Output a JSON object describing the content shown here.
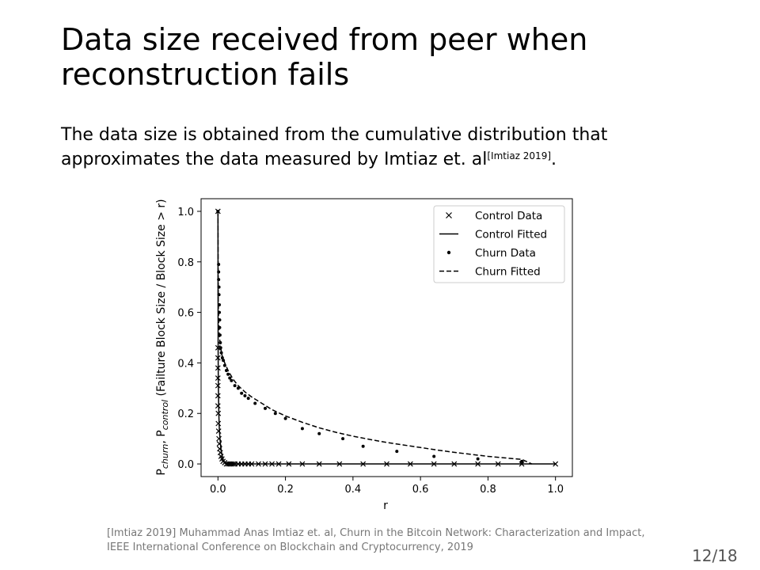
{
  "slide": {
    "title": "Data size received from peer when reconstruction fails",
    "body_text": "The data size is obtained from the cumulative distribution that approximates the data measured by Imtiaz et. al",
    "body_citation": "[Imtiaz 2019]",
    "body_end": ".",
    "footnote": "[Imtiaz 2019] Muhammad Anas Imtiaz et. al, Churn in the Bitcoin Network: Characterization and Impact, IEEE International Conference on Blockchain and Cryptocurrency, 2019",
    "page_number": "12/18"
  },
  "chart_data": {
    "type": "scatter",
    "xlabel": "r",
    "ylabel": "P_churn, P_control (Failture Block Size / Block Size > r)",
    "ylabel_parts": {
      "p1": "P",
      "sub1": "churn",
      "sep": ", ",
      "p2": "P",
      "sub2": "control",
      "rest": " (Failture Block Size / Block Size > r)"
    },
    "xlim": [
      -0.05,
      1.05
    ],
    "ylim": [
      -0.05,
      1.05
    ],
    "x_ticks": [
      "0.0",
      "0.2",
      "0.4",
      "0.6",
      "0.8",
      "1.0"
    ],
    "y_ticks": [
      "0.0",
      "0.2",
      "0.4",
      "0.6",
      "0.8",
      "1.0"
    ],
    "grid": false,
    "legend_position": "top-right",
    "series": [
      {
        "name": "Control Data",
        "style": "x-marker",
        "points": [
          [
            0.0,
            1.0
          ],
          [
            0.0,
            0.46
          ],
          [
            0.0,
            0.42
          ],
          [
            0.0,
            0.38
          ],
          [
            0.0,
            0.34
          ],
          [
            0.0,
            0.31
          ],
          [
            0.0,
            0.27
          ],
          [
            0.0,
            0.23
          ],
          [
            0.001,
            0.2
          ],
          [
            0.001,
            0.16
          ],
          [
            0.002,
            0.13
          ],
          [
            0.003,
            0.1
          ],
          [
            0.004,
            0.08
          ],
          [
            0.005,
            0.06
          ],
          [
            0.007,
            0.045
          ],
          [
            0.009,
            0.03
          ],
          [
            0.012,
            0.02
          ],
          [
            0.015,
            0.01
          ],
          [
            0.02,
            0.005
          ],
          [
            0.025,
            0.0
          ],
          [
            0.03,
            0.0
          ],
          [
            0.035,
            0.0
          ],
          [
            0.04,
            0.0
          ],
          [
            0.045,
            0.0
          ],
          [
            0.05,
            0.0
          ],
          [
            0.06,
            0.0
          ],
          [
            0.07,
            0.0
          ],
          [
            0.08,
            0.0
          ],
          [
            0.09,
            0.0
          ],
          [
            0.1,
            0.0
          ],
          [
            0.12,
            0.0
          ],
          [
            0.14,
            0.0
          ],
          [
            0.16,
            0.0
          ],
          [
            0.18,
            0.0
          ],
          [
            0.21,
            0.0
          ],
          [
            0.25,
            0.0
          ],
          [
            0.3,
            0.0
          ],
          [
            0.36,
            0.0
          ],
          [
            0.43,
            0.0
          ],
          [
            0.5,
            0.0
          ],
          [
            0.57,
            0.0
          ],
          [
            0.64,
            0.0
          ],
          [
            0.7,
            0.0
          ],
          [
            0.77,
            0.0
          ],
          [
            0.83,
            0.0
          ],
          [
            0.9,
            0.0
          ],
          [
            1.0,
            0.0
          ]
        ]
      },
      {
        "name": "Control Fitted",
        "style": "solid-line",
        "points": [
          [
            0.0,
            1.0
          ],
          [
            0.0005,
            0.46
          ],
          [
            0.001,
            0.33
          ],
          [
            0.002,
            0.24
          ],
          [
            0.003,
            0.18
          ],
          [
            0.004,
            0.14
          ],
          [
            0.006,
            0.1
          ],
          [
            0.008,
            0.07
          ],
          [
            0.01,
            0.05
          ],
          [
            0.013,
            0.03
          ],
          [
            0.016,
            0.015
          ],
          [
            0.02,
            0.006
          ],
          [
            0.03,
            0.001
          ],
          [
            0.05,
            0.0
          ],
          [
            0.1,
            0.0
          ],
          [
            0.3,
            0.0
          ],
          [
            0.6,
            0.0
          ],
          [
            1.0,
            0.0
          ]
        ]
      },
      {
        "name": "Churn Data",
        "style": "dot-marker",
        "points": [
          [
            0.0,
            1.0
          ],
          [
            0.002,
            0.79
          ],
          [
            0.002,
            0.76
          ],
          [
            0.002,
            0.73
          ],
          [
            0.003,
            0.7
          ],
          [
            0.003,
            0.67
          ],
          [
            0.004,
            0.63
          ],
          [
            0.004,
            0.6
          ],
          [
            0.005,
            0.57
          ],
          [
            0.005,
            0.54
          ],
          [
            0.006,
            0.51
          ],
          [
            0.007,
            0.48
          ],
          [
            0.008,
            0.46
          ],
          [
            0.01,
            0.44
          ],
          [
            0.013,
            0.42
          ],
          [
            0.016,
            0.41
          ],
          [
            0.02,
            0.39
          ],
          [
            0.025,
            0.37
          ],
          [
            0.03,
            0.355
          ],
          [
            0.035,
            0.34
          ],
          [
            0.04,
            0.33
          ],
          [
            0.05,
            0.31
          ],
          [
            0.06,
            0.3
          ],
          [
            0.07,
            0.28
          ],
          [
            0.08,
            0.27
          ],
          [
            0.09,
            0.26
          ],
          [
            0.11,
            0.24
          ],
          [
            0.14,
            0.22
          ],
          [
            0.17,
            0.2
          ],
          [
            0.2,
            0.18
          ],
          [
            0.25,
            0.14
          ],
          [
            0.3,
            0.12
          ],
          [
            0.37,
            0.1
          ],
          [
            0.43,
            0.07
          ],
          [
            0.53,
            0.05
          ],
          [
            0.64,
            0.03
          ],
          [
            0.77,
            0.02
          ],
          [
            0.9,
            0.01
          ]
        ]
      },
      {
        "name": "Churn Fitted",
        "style": "dashed-line",
        "points": [
          [
            0.0,
            1.0
          ],
          [
            0.0008,
            0.65
          ],
          [
            0.002,
            0.57
          ],
          [
            0.004,
            0.51
          ],
          [
            0.007,
            0.47
          ],
          [
            0.012,
            0.43
          ],
          [
            0.02,
            0.4
          ],
          [
            0.03,
            0.37
          ],
          [
            0.045,
            0.335
          ],
          [
            0.06,
            0.31
          ],
          [
            0.08,
            0.285
          ],
          [
            0.1,
            0.265
          ],
          [
            0.13,
            0.24
          ],
          [
            0.16,
            0.215
          ],
          [
            0.2,
            0.19
          ],
          [
            0.25,
            0.165
          ],
          [
            0.3,
            0.143
          ],
          [
            0.35,
            0.125
          ],
          [
            0.4,
            0.11
          ],
          [
            0.45,
            0.097
          ],
          [
            0.5,
            0.085
          ],
          [
            0.55,
            0.075
          ],
          [
            0.6,
            0.065
          ],
          [
            0.65,
            0.055
          ],
          [
            0.7,
            0.046
          ],
          [
            0.75,
            0.038
          ],
          [
            0.8,
            0.03
          ],
          [
            0.85,
            0.024
          ],
          [
            0.9,
            0.018
          ],
          [
            0.93,
            0.0
          ]
        ]
      }
    ]
  }
}
